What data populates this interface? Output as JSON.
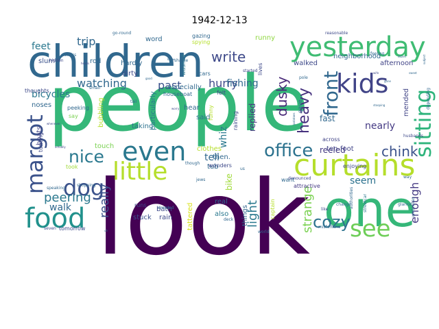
{
  "title": "1942-12-13",
  "palette": {
    "dark_purple": "#440154",
    "indigo": "#3b528b",
    "teal": "#21918c",
    "green": "#5ec962",
    "lime": "#b5de2b",
    "yellow": "#fde725"
  },
  "words": [
    {
      "text": "people",
      "color": "#35b779"
    },
    {
      "text": "look",
      "color": "#440154"
    },
    {
      "text": "children",
      "color": "#31688e"
    },
    {
      "text": "curtains",
      "color": "#b5de2b"
    },
    {
      "text": "one",
      "color": "#35b779"
    },
    {
      "text": "yesterday",
      "color": "#3fbc73"
    },
    {
      "text": "kids",
      "color": "#414487"
    },
    {
      "text": "even",
      "color": "#2a788e"
    },
    {
      "text": "little",
      "color": "#b5de2b"
    },
    {
      "text": "food",
      "color": "#21918c"
    },
    {
      "text": "margot",
      "color": "#3b528b"
    },
    {
      "text": "dog",
      "color": "#3b528b"
    },
    {
      "text": "office",
      "color": "#2c728e"
    },
    {
      "text": "see",
      "color": "#6ece58"
    },
    {
      "text": "nice",
      "color": "#2a788e"
    },
    {
      "text": "sitting",
      "color": "#2fb47c"
    },
    {
      "text": "front",
      "color": "#31688e"
    },
    {
      "text": "cozy",
      "color": "#2c728e"
    },
    {
      "text": "heavy",
      "color": "#46327e"
    },
    {
      "text": "dusky",
      "color": "#482878"
    },
    {
      "text": "write",
      "color": "#3e4989"
    },
    {
      "text": "chink",
      "color": "#3b528b"
    },
    {
      "text": "peering",
      "color": "#2a788e"
    },
    {
      "text": "really",
      "color": "#3b528b"
    },
    {
      "text": "strange",
      "color": "#7ad151"
    },
    {
      "text": "enough",
      "color": "#443983"
    },
    {
      "text": "light",
      "color": "#2a788e"
    },
    {
      "text": "trip",
      "color": "#31688e"
    },
    {
      "text": "past",
      "color": "#3b528b"
    },
    {
      "text": "watching",
      "color": "#31688e"
    },
    {
      "text": "hurry",
      "color": "#3e4989"
    },
    {
      "text": "fishing",
      "color": "#31688e"
    },
    {
      "text": "bicycles",
      "color": "#2a788e"
    },
    {
      "text": "feet",
      "color": "#2a788e"
    },
    {
      "text": "walk",
      "color": "#31688e"
    },
    {
      "text": "whiz",
      "color": "#2a788e"
    },
    {
      "text": "nearly",
      "color": "#443983"
    },
    {
      "text": "fast",
      "color": "#31688e"
    },
    {
      "text": "seem",
      "color": "#2c728e"
    },
    {
      "text": "tell",
      "color": "#31688e"
    },
    {
      "text": "bike",
      "color": "#a0da39"
    },
    {
      "text": "replied",
      "color": "#46327e"
    },
    {
      "text": "reeled",
      "color": "#443983"
    },
    {
      "text": "ten-foot",
      "color": "#414487"
    },
    {
      "text": "mended",
      "color": "#414487"
    },
    {
      "text": "neighborhood",
      "color": "#31688e"
    },
    {
      "text": "walked",
      "color": "#3e4989"
    },
    {
      "text": "afternoon",
      "color": "#414487"
    },
    {
      "text": "hardly",
      "color": "#31688e"
    },
    {
      "text": "dirty",
      "color": "#3e4989"
    },
    {
      "text": "word",
      "color": "#31688e"
    },
    {
      "text": "rod",
      "color": "#31688e"
    },
    {
      "text": "slum",
      "color": "#3b528b"
    },
    {
      "text": "runny",
      "color": "#90d743"
    },
    {
      "text": "taking",
      "color": "#2c728e"
    },
    {
      "text": "touch",
      "color": "#7ad151"
    },
    {
      "text": "clothes",
      "color": "#b5de2b"
    },
    {
      "text": "hear",
      "color": "#31688e"
    },
    {
      "text": "said",
      "color": "#2c728e"
    },
    {
      "text": "real",
      "color": "#31688e"
    },
    {
      "text": "also",
      "color": "#2a788e"
    },
    {
      "text": "stuck",
      "color": "#3b528b"
    },
    {
      "text": "bath",
      "color": "#3e4989"
    },
    {
      "text": "rain",
      "color": "#3e4989"
    },
    {
      "text": "tomorrow",
      "color": "#3e4989"
    },
    {
      "text": "tattered",
      "color": "#d8e219"
    },
    {
      "text": "especially",
      "color": "#31688e"
    },
    {
      "text": "particularly",
      "color": "#2a788e"
    },
    {
      "text": "bubbling",
      "color": "#b5de2b"
    },
    {
      "text": "noses",
      "color": "#31688e"
    },
    {
      "text": "boats",
      "color": "#414487"
    },
    {
      "text": "thoughts",
      "color": "#3e4989"
    },
    {
      "text": "peeking",
      "color": "#31688e"
    },
    {
      "text": "say",
      "color": "#7ad151"
    },
    {
      "text": "took",
      "color": "#a0da39"
    },
    {
      "text": "runs",
      "color": "#3e4989"
    },
    {
      "text": "cars",
      "color": "#31688e"
    },
    {
      "text": "felt",
      "color": "#3e4989"
    },
    {
      "text": "houseboat",
      "color": "#31688e"
    },
    {
      "text": "captain",
      "color": "#b5de2b"
    },
    {
      "text": "attractive",
      "color": "#443983"
    },
    {
      "text": "want",
      "color": "#31688e"
    },
    {
      "text": "things",
      "color": "#31688e"
    },
    {
      "text": "then.",
      "color": "#31688e"
    },
    {
      "text": "tub",
      "color": "#31688e"
    },
    {
      "text": "wonders",
      "color": "#3e4989"
    },
    {
      "text": "deck",
      "color": "#31688e"
    },
    {
      "text": "across",
      "color": "#414487"
    },
    {
      "text": "enjoying",
      "color": "#3e4989"
    },
    {
      "text": "raining",
      "color": "#3e4989"
    },
    {
      "text": "funny",
      "color": "#b5de2b"
    },
    {
      "text": "started",
      "color": "#3e4989"
    },
    {
      "text": "washed",
      "color": "#2a788e"
    },
    {
      "text": "gazing",
      "color": "#31688e"
    },
    {
      "text": "spying",
      "color": "#b5de2b"
    },
    {
      "text": "shame",
      "color": "#31688e"
    },
    {
      "text": "politics",
      "color": "#31688e"
    },
    {
      "text": "go-round",
      "color": "#31688e"
    },
    {
      "text": "hidden",
      "color": "#3e4989"
    },
    {
      "text": "gave",
      "color": "#31688e"
    },
    {
      "text": "pole",
      "color": "#31688e"
    },
    {
      "text": "lives",
      "color": "#3e4989"
    },
    {
      "text": "feeling",
      "color": "#31688e"
    },
    {
      "text": "denounced",
      "color": "#3e4989"
    },
    {
      "text": "jews",
      "color": "#31688e"
    },
    {
      "text": "though",
      "color": "#31688e"
    },
    {
      "text": "us",
      "color": "#31688e"
    },
    {
      "text": "dressed",
      "color": "#31688e"
    },
    {
      "text": "speaking",
      "color": "#31688e"
    },
    {
      "text": "turning",
      "color": "#3e4989"
    },
    {
      "text": "streetcar",
      "color": "#2a788e"
    },
    {
      "text": "authorities",
      "color": "#31688e"
    },
    {
      "text": "umbrellas",
      "color": "#31688e"
    },
    {
      "text": "misfortune",
      "color": "#31688e"
    },
    {
      "text": "world",
      "color": "#31688e"
    },
    {
      "text": "seven",
      "color": "#3e4989"
    },
    {
      "text": "like",
      "color": "#3e4989"
    },
    {
      "text": "change",
      "color": "#31688e"
    },
    {
      "text": "glance",
      "color": "#31688e"
    },
    {
      "text": "way",
      "color": "#31688e"
    },
    {
      "text": "depending",
      "color": "#31688e"
    },
    {
      "text": "husbands",
      "color": "#3e4989"
    },
    {
      "text": "tail",
      "color": "#31688e"
    },
    {
      "text": "small",
      "color": "#31688e"
    },
    {
      "text": "whenever",
      "color": "#3e4989"
    },
    {
      "text": "actually",
      "color": "#3e4989"
    },
    {
      "text": "shopping",
      "color": "#31688e"
    },
    {
      "text": "uh",
      "color": "#31688e"
    },
    {
      "text": "wife",
      "color": "#3e4989"
    },
    {
      "text": "knew",
      "color": "#31688e"
    },
    {
      "text": "gone",
      "color": "#31688e"
    },
    {
      "text": "reasonable",
      "color": "#3e4989"
    },
    {
      "text": "potatoes",
      "color": "#31688e"
    },
    {
      "text": "stooping",
      "color": "#31688e"
    },
    {
      "text": "subject",
      "color": "#31688e"
    },
    {
      "text": "good",
      "color": "#31688e"
    },
    {
      "text": "worry",
      "color": "#3e4989"
    },
    {
      "text": "heads",
      "color": "#3e4989"
    },
    {
      "text": "sweet",
      "color": "#31688e"
    },
    {
      "text": "dozen",
      "color": "#31688e"
    },
    {
      "text": "drew",
      "color": "#31688e"
    }
  ]
}
